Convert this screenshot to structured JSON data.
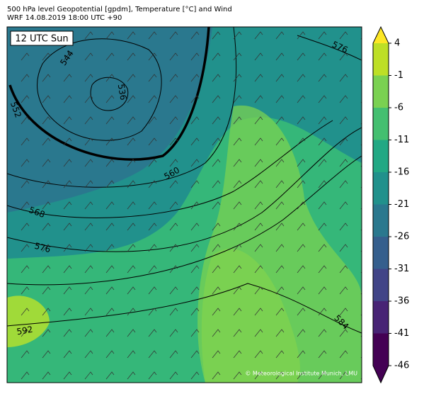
{
  "header": {
    "title": "500 hPa level Geopotential [gpdm], Temperature [°C] and Wind",
    "subtitle": "WRF 14.08.2019 18:00 UTC +90"
  },
  "map": {
    "time_label": "12 UTC Sun",
    "copyright": "© Meteorological Institute Munich, LMU",
    "contour_labels": [
      544,
      536,
      552,
      560,
      568,
      576,
      576,
      592,
      584
    ]
  },
  "colorbar": {
    "ticks": [
      4,
      -1,
      -6,
      -11,
      -16,
      -21,
      -26,
      -31,
      -36,
      -41,
      -46
    ],
    "colors": [
      "#440154",
      "#482475",
      "#414487",
      "#355f8d",
      "#2a788e",
      "#21918c",
      "#22a884",
      "#44bf70",
      "#7ad151",
      "#bddf26"
    ],
    "under_color": "#440154",
    "over_color": "#fde725"
  }
}
